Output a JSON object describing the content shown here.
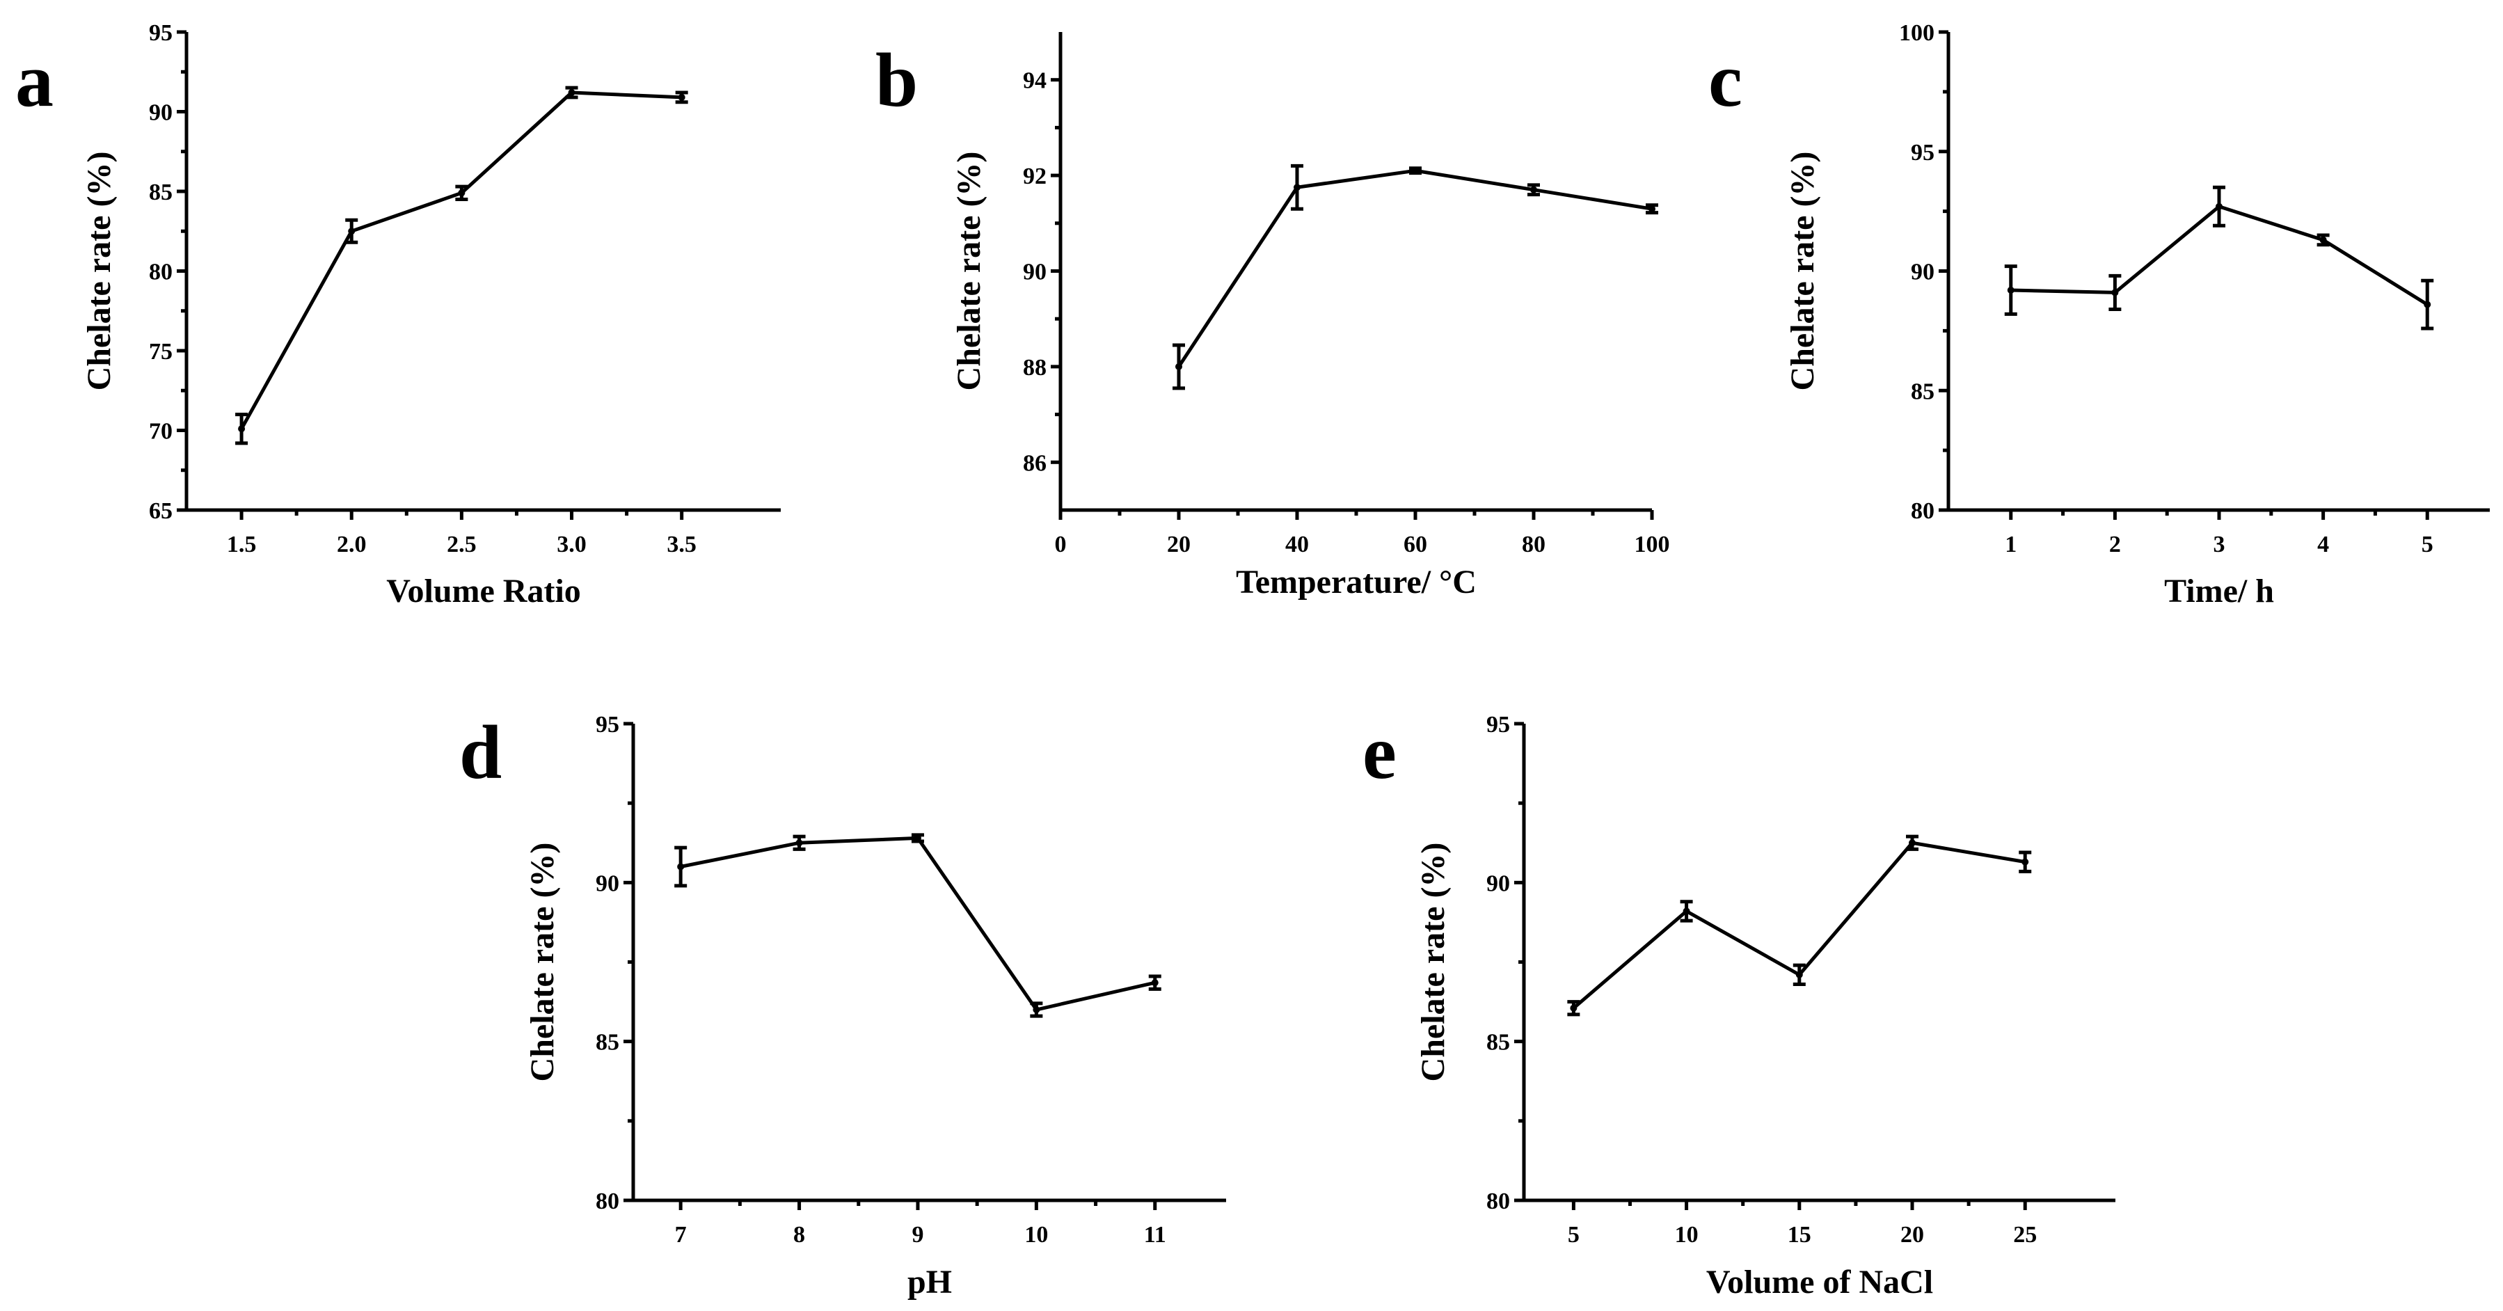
{
  "chart_data": [
    {
      "panel": "a",
      "type": "line",
      "xlabel": "Volume Ratio",
      "ylabel": "Chelate rate (%)",
      "xlim": [
        1.25,
        3.95
      ],
      "ylim": [
        65,
        95
      ],
      "xticks": [
        1.5,
        2.0,
        2.5,
        3.0,
        3.5
      ],
      "xtick_labels": [
        "1.5",
        "2.0",
        "2.5",
        "3.0",
        "3.5"
      ],
      "yticks": [
        65,
        70,
        75,
        80,
        85,
        90,
        95
      ],
      "ytick_labels": [
        "65",
        "70",
        "75",
        "80",
        "85",
        "90",
        "95"
      ],
      "x": [
        1.5,
        2.0,
        2.5,
        3.0,
        3.5
      ],
      "y": [
        70.1,
        82.5,
        84.9,
        91.2,
        90.9
      ],
      "err": [
        0.9,
        0.7,
        0.4,
        0.3,
        0.3
      ]
    },
    {
      "panel": "b",
      "type": "line",
      "xlabel": "Temperature/ °C",
      "ylabel": "Chelate rate (%)",
      "xlim": [
        0,
        100
      ],
      "ylim": [
        85,
        95
      ],
      "xticks": [
        0,
        20,
        40,
        60,
        80,
        100
      ],
      "xtick_labels": [
        "0",
        "20",
        "40",
        "60",
        "80",
        "100"
      ],
      "yticks": [
        86,
        88,
        90,
        92,
        94
      ],
      "ytick_labels": [
        "86",
        "88",
        "90",
        "92",
        "94"
      ],
      "x": [
        20,
        40,
        60,
        80,
        100
      ],
      "y": [
        88.0,
        91.75,
        92.1,
        91.7,
        91.3
      ],
      "err": [
        0.45,
        0.45,
        0.05,
        0.1,
        0.08
      ]
    },
    {
      "panel": "c",
      "type": "line",
      "xlabel": "Time/ h",
      "ylabel": "Chelate rate (%)",
      "xlim": [
        0.4,
        5.6
      ],
      "ylim": [
        80,
        100
      ],
      "xticks": [
        1,
        2,
        3,
        4,
        5
      ],
      "xtick_labels": [
        "1",
        "2",
        "3",
        "4",
        "5"
      ],
      "yticks": [
        80,
        85,
        90,
        95,
        100
      ],
      "ytick_labels": [
        "80",
        "85",
        "90",
        "95",
        "100"
      ],
      "x": [
        1,
        2,
        3,
        4,
        5
      ],
      "y": [
        89.2,
        89.1,
        92.7,
        91.3,
        88.6
      ],
      "err": [
        1.0,
        0.7,
        0.8,
        0.2,
        1.0
      ]
    },
    {
      "panel": "d",
      "type": "line",
      "xlabel": "pH",
      "ylabel": "Chelate rate (%)",
      "xlim": [
        6.6,
        11.6
      ],
      "ylim": [
        80,
        95
      ],
      "xticks": [
        7,
        8,
        9,
        10,
        11
      ],
      "xtick_labels": [
        "7",
        "8",
        "9",
        "10",
        "11"
      ],
      "yticks": [
        80,
        85,
        90,
        95
      ],
      "ytick_labels": [
        "80",
        "85",
        "90",
        "95"
      ],
      "x": [
        7,
        8,
        9,
        10,
        11
      ],
      "y": [
        90.5,
        91.25,
        91.4,
        86.0,
        86.85
      ],
      "err": [
        0.6,
        0.2,
        0.1,
        0.2,
        0.2
      ]
    },
    {
      "panel": "e",
      "type": "line",
      "xlabel": "Volume of NaCl",
      "ylabel": "Chelate rate (%)",
      "xlim": [
        2.8,
        29.0
      ],
      "ylim": [
        80,
        95
      ],
      "xticks": [
        5,
        10,
        15,
        20,
        25
      ],
      "xtick_labels": [
        "5",
        "10",
        "15",
        "20",
        "25"
      ],
      "yticks": [
        80,
        85,
        90,
        95
      ],
      "ytick_labels": [
        "80",
        "85",
        "90",
        "95"
      ],
      "x": [
        5,
        10,
        15,
        20,
        25
      ],
      "y": [
        86.05,
        89.1,
        87.1,
        91.25,
        90.65
      ],
      "err": [
        0.2,
        0.3,
        0.3,
        0.2,
        0.3
      ]
    }
  ]
}
